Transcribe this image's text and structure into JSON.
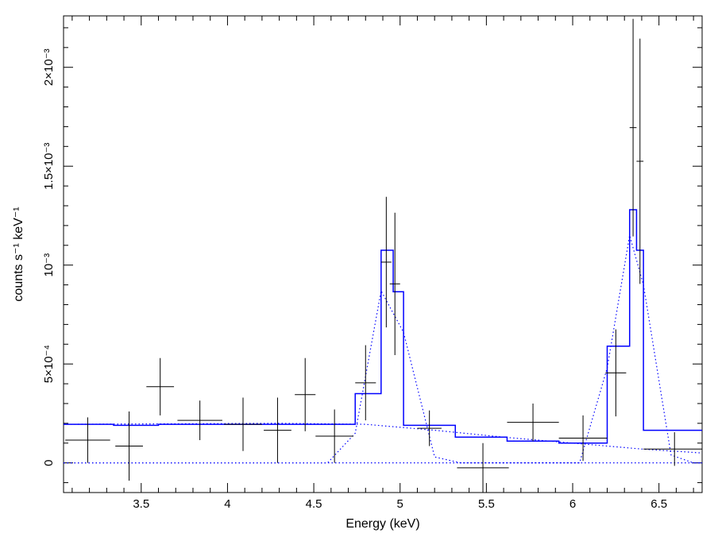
{
  "chart_data": {
    "type": "line",
    "xlabel": "Energy (keV)",
    "ylabel": "counts s⁻¹ keV⁻¹",
    "xlim": [
      3.05,
      6.75
    ],
    "ylim": [
      -0.00015,
      0.00226
    ],
    "x_ticks": [
      {
        "value": 3.5,
        "label": "3.5"
      },
      {
        "value": 4.0,
        "label": "4"
      },
      {
        "value": 4.5,
        "label": "4.5"
      },
      {
        "value": 5.0,
        "label": "5"
      },
      {
        "value": 5.5,
        "label": "5.5"
      },
      {
        "value": 6.0,
        "label": "6"
      },
      {
        "value": 6.5,
        "label": "6.5"
      }
    ],
    "y_ticks": [
      {
        "value": 0.0,
        "label": "0"
      },
      {
        "value": 0.0005,
        "label": "5×10⁻⁴"
      },
      {
        "value": 0.001,
        "label": "10⁻³"
      },
      {
        "value": 0.0015,
        "label": "1.5×10⁻³"
      },
      {
        "value": 0.002,
        "label": "2×10⁻³"
      }
    ],
    "grid": false,
    "series": [
      {
        "kind": "data_crosses",
        "color": "#000000",
        "points": [
          {
            "x": 3.19,
            "xerr": 0.13,
            "y": 0.000115,
            "yerr": 0.000115
          },
          {
            "x": 3.43,
            "xerr": 0.08,
            "y": 8.5e-05,
            "yerr": 0.000175
          },
          {
            "x": 3.61,
            "xerr": 0.08,
            "y": 0.000385,
            "yerr": 0.000145
          },
          {
            "x": 3.84,
            "xerr": 0.13,
            "y": 0.000215,
            "yerr": 0.0001
          },
          {
            "x": 4.09,
            "xerr": 0.11,
            "y": 0.000195,
            "yerr": 0.000135
          },
          {
            "x": 4.29,
            "xerr": 0.08,
            "y": 0.000165,
            "yerr": 0.000165
          },
          {
            "x": 4.45,
            "xerr": 0.06,
            "y": 0.000345,
            "yerr": 0.000185
          },
          {
            "x": 4.62,
            "xerr": 0.11,
            "y": 0.000135,
            "yerr": 0.000135
          },
          {
            "x": 4.8,
            "xerr": 0.06,
            "y": 0.000405,
            "yerr": 0.00019
          },
          {
            "x": 4.92,
            "xerr": 0.03,
            "y": 0.001015,
            "yerr": 0.00033
          },
          {
            "x": 4.97,
            "xerr": 0.03,
            "y": 0.000905,
            "yerr": 0.00036
          },
          {
            "x": 5.17,
            "xerr": 0.07,
            "y": 0.000175,
            "yerr": 9e-05
          },
          {
            "x": 5.48,
            "xerr": 0.15,
            "y": -2.5e-05,
            "yerr": 0.000125
          },
          {
            "x": 5.77,
            "xerr": 0.15,
            "y": 0.000205,
            "yerr": 9.5e-05
          },
          {
            "x": 6.06,
            "xerr": 0.14,
            "y": 0.000125,
            "yerr": 0.000115
          },
          {
            "x": 6.25,
            "xerr": 0.06,
            "y": 0.000455,
            "yerr": 0.00022
          },
          {
            "x": 6.35,
            "xerr": 0.02,
            "y": 0.001695,
            "yerr": 0.00055
          },
          {
            "x": 6.39,
            "xerr": 0.02,
            "y": 0.001525,
            "yerr": 0.00062
          },
          {
            "x": 6.59,
            "xerr": 0.18,
            "y": 7e-05,
            "yerr": 8.5e-05
          }
        ]
      },
      {
        "kind": "model_total_step",
        "color": "#0000ff",
        "points": [
          [
            3.05,
            0.000195
          ],
          [
            3.34,
            0.000195
          ],
          [
            3.34,
            0.00019
          ],
          [
            3.6,
            0.00019
          ],
          [
            3.6,
            0.000195
          ],
          [
            4.74,
            0.000195
          ],
          [
            4.74,
            0.00035
          ],
          [
            4.89,
            0.00035
          ],
          [
            4.89,
            0.001075
          ],
          [
            4.96,
            0.001075
          ],
          [
            4.96,
            0.000865
          ],
          [
            5.02,
            0.000865
          ],
          [
            5.02,
            0.00019
          ],
          [
            5.32,
            0.00019
          ],
          [
            5.32,
            0.00013
          ],
          [
            5.62,
            0.00013
          ],
          [
            5.62,
            0.00011
          ],
          [
            5.92,
            0.00011
          ],
          [
            5.92,
            0.0001
          ],
          [
            6.2,
            0.0001
          ],
          [
            6.2,
            0.00059
          ],
          [
            6.33,
            0.00059
          ],
          [
            6.33,
            0.00128
          ],
          [
            6.37,
            0.00128
          ],
          [
            6.37,
            0.001075
          ],
          [
            6.41,
            0.001075
          ],
          [
            6.41,
            0.000165
          ],
          [
            6.75,
            0.000165
          ]
        ]
      },
      {
        "kind": "model_continuum_dotted",
        "color": "#0000ff",
        "points": [
          [
            3.05,
            0.000195
          ],
          [
            4.3,
            0.0002
          ],
          [
            4.8,
            0.000195
          ],
          [
            5.2,
            0.000165
          ],
          [
            5.6,
            0.00013
          ],
          [
            6.0,
            0.0001
          ],
          [
            6.4,
            7e-05
          ],
          [
            6.75,
            5e-05
          ]
        ]
      },
      {
        "kind": "model_line1_dotted",
        "color": "#0000ff",
        "points": [
          [
            3.05,
            0.0
          ],
          [
            4.58,
            0.0
          ],
          [
            4.74,
            0.00015
          ],
          [
            4.89,
            0.00087
          ],
          [
            5.02,
            0.00066
          ],
          [
            5.2,
            3e-05
          ],
          [
            5.35,
            0.0
          ],
          [
            6.75,
            0.0
          ]
        ]
      },
      {
        "kind": "model_line2_dotted",
        "color": "#0000ff",
        "points": [
          [
            3.05,
            0.0
          ],
          [
            6.04,
            0.0
          ],
          [
            6.2,
            0.00048
          ],
          [
            6.33,
            0.00115
          ],
          [
            6.41,
            0.0009
          ],
          [
            6.57,
            4e-05
          ],
          [
            6.7,
            0.0
          ],
          [
            6.75,
            0.0
          ]
        ]
      }
    ]
  }
}
